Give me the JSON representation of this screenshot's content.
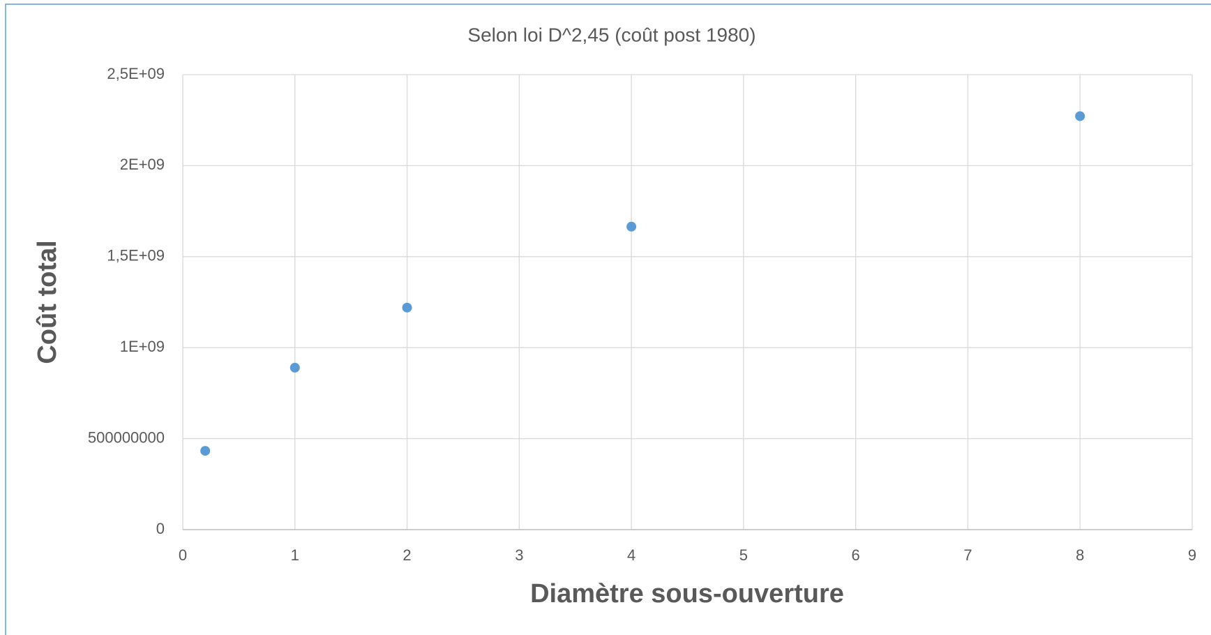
{
  "chart_data": {
    "type": "scatter",
    "title": "Selon loi D^2,45 (coût post 1980)",
    "x_label": "Diamètre sous-ouverture",
    "y_label": "Coût total",
    "series": [
      {
        "color": "#5b9bd5",
        "x": [
          0.2,
          1,
          2,
          4,
          8
        ],
        "values": [
          433000000,
          890000000,
          1220000000,
          1665000000,
          2272000000
        ]
      }
    ],
    "xlim": [
      0,
      9
    ],
    "xticks": [
      0,
      1,
      2,
      3,
      4,
      5,
      6,
      7,
      8,
      9
    ],
    "ylim": [
      0,
      2500000000
    ],
    "yticks": [
      0,
      500000000,
      {
        "value": 1000000000,
        "label": "1E+09"
      },
      {
        "value": 1500000000,
        "label": "1,5E+09"
      },
      {
        "value": 2000000000,
        "label": "2E+09"
      },
      {
        "value": 2500000000,
        "label": "2,5E+09"
      }
    ],
    "grid": true
  }
}
